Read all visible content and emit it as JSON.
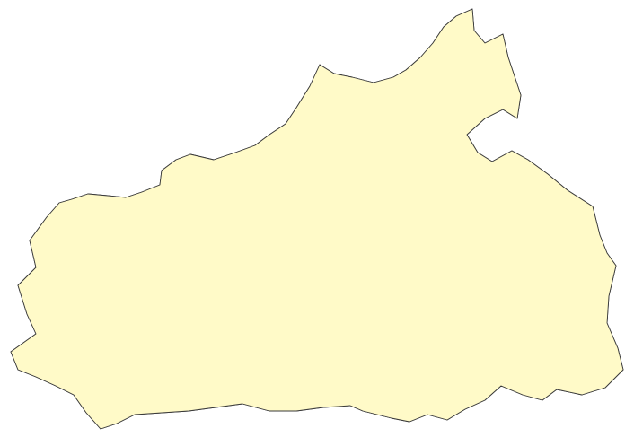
{
  "map": {
    "type": "choropleth",
    "classes": [
      {
        "id": "c1",
        "color": "#2c6db3"
      },
      {
        "id": "c2",
        "color": "#6fa8d6"
      },
      {
        "id": "c3",
        "color": "#b7d7ec"
      },
      {
        "id": "c4",
        "color": "#e6f2f8"
      },
      {
        "id": "c5",
        "color": "#fffac8"
      },
      {
        "id": "c6",
        "color": "#fdd189"
      },
      {
        "id": "c7",
        "color": "#f9a15a"
      },
      {
        "id": "c8",
        "color": "#ee6a3e"
      },
      {
        "id": "c9",
        "color": "#d53325"
      },
      {
        "id": "c10",
        "color": "#a50b2b"
      }
    ],
    "background": "#fffac8",
    "boundary_color": "#3a3a3a"
  }
}
